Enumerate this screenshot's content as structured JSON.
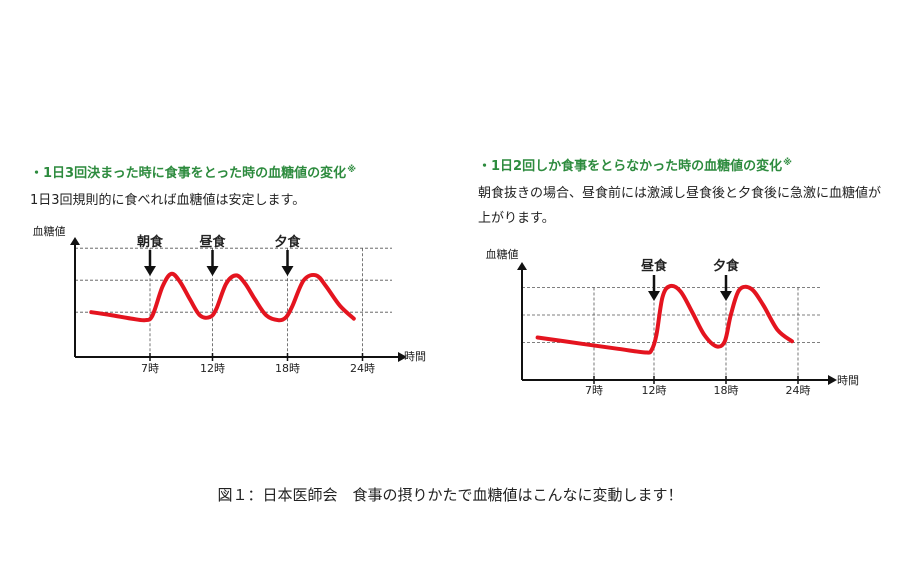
{
  "panels": [
    {
      "title": "・1日3回決まった時に食事をとった時の血糖値の変化",
      "title_mark": "※",
      "description": "1日3回規則的に食べれば血糖値は安定します。"
    },
    {
      "title": "・1日2回しか食事をとらなかった時の血糖値の変化",
      "title_mark": "※",
      "description": "朝食抜きの場合、昼食前には激減し昼食後と夕食後に急激に血糖値が上がります。"
    }
  ],
  "caption": "図１：日本医師会　食事の摂りかたで血糖値はこんなに変動します！",
  "chart_data": [
    {
      "type": "line",
      "ylabel": "血糖値",
      "xlabel": "時間",
      "x_ticks": [
        7,
        12,
        18,
        24
      ],
      "x_tick_labels": [
        "7時",
        "12時",
        "18時",
        "24時"
      ],
      "xlim": [
        1,
        25
      ],
      "ylim": [
        0,
        4
      ],
      "grid_levels": [
        1.4,
        2.4,
        3.4
      ],
      "meals": [
        {
          "label": "朝食",
          "x": 7
        },
        {
          "label": "昼食",
          "x": 12
        },
        {
          "label": "夕食",
          "x": 18
        }
      ],
      "series": [
        {
          "color": "#e4141f",
          "x": [
            2.3,
            4,
            5.5,
            6.6,
            7.2,
            8,
            8.7,
            9.4,
            10.2,
            11,
            11.8,
            12.3,
            13.1,
            13.9,
            14.6,
            15.4,
            16.3,
            17.3,
            17.9,
            18.4,
            19.3,
            20.3,
            21.1,
            22.2,
            23.3
          ],
          "values": [
            1.4,
            1.3,
            1.2,
            1.15,
            1.3,
            2.2,
            2.6,
            2.35,
            1.8,
            1.3,
            1.25,
            1.5,
            2.3,
            2.55,
            2.3,
            1.8,
            1.3,
            1.15,
            1.25,
            1.6,
            2.4,
            2.55,
            2.2,
            1.6,
            1.2
          ]
        }
      ]
    },
    {
      "type": "line",
      "ylabel": "血糖値",
      "xlabel": "時間",
      "x_ticks": [
        7,
        12,
        18,
        24
      ],
      "x_tick_labels": [
        "7時",
        "12時",
        "18時",
        "24時"
      ],
      "xlim": [
        1,
        25
      ],
      "ylim": [
        0,
        5
      ],
      "grid_levels": [
        1.5,
        2.6,
        3.7
      ],
      "meals": [
        {
          "label": "昼食",
          "x": 12
        },
        {
          "label": "夕食",
          "x": 18
        }
      ],
      "series": [
        {
          "color": "#e4141f",
          "x": [
            2.3,
            6,
            9,
            11.3,
            11.8,
            12.2,
            12.7,
            13.3,
            14.2,
            15.2,
            16.2,
            17.2,
            17.9,
            18.4,
            19.1,
            20.1,
            21.1,
            22.3,
            23.5
          ],
          "values": [
            1.7,
            1.45,
            1.25,
            1.1,
            1.2,
            1.8,
            3.3,
            3.75,
            3.55,
            2.7,
            1.8,
            1.35,
            1.55,
            2.6,
            3.6,
            3.65,
            3.0,
            2.0,
            1.55
          ]
        }
      ]
    }
  ]
}
